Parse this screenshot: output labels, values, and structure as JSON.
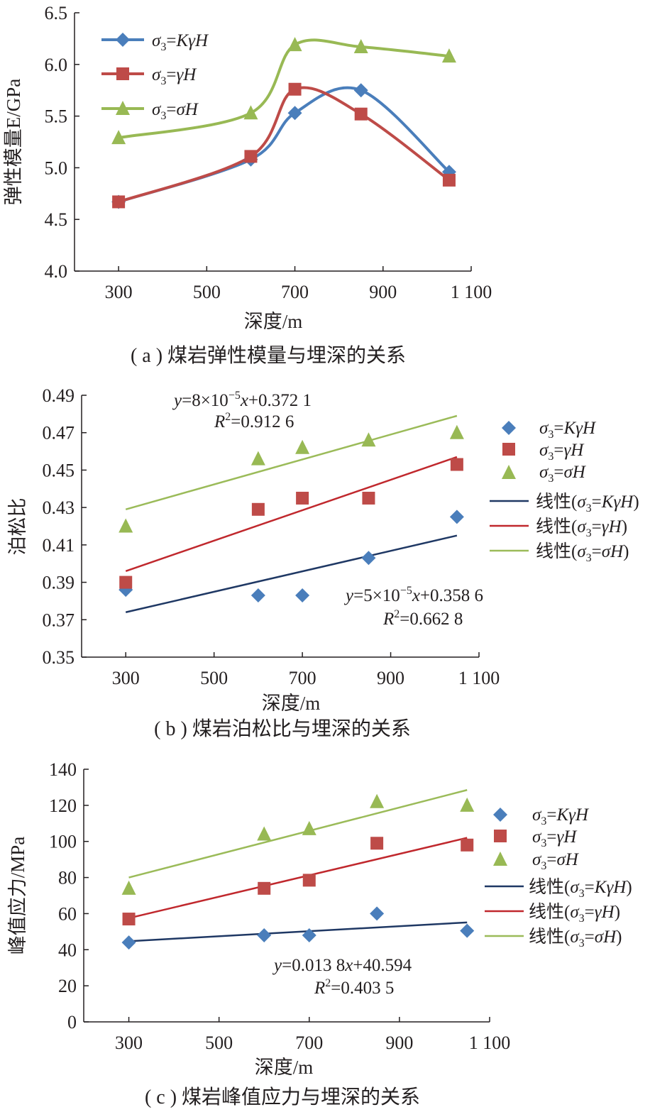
{
  "chart_data": [
    {
      "id": "a",
      "type": "line",
      "caption": "( a ) 煤岩弹性模量与埋深的关系",
      "xlabel": "深度/m",
      "ylabel": "弹性模量E/GPa",
      "xlim": [
        200,
        1100
      ],
      "ylim": [
        4.0,
        6.5
      ],
      "xticks": [
        300,
        500,
        700,
        900,
        1100
      ],
      "xtick_labels": [
        "300",
        "500",
        "700",
        "900",
        "1 100"
      ],
      "yticks": [
        4.0,
        4.5,
        5.0,
        5.5,
        6.0,
        6.5
      ],
      "ytick_labels": [
        "4.0",
        "4.5",
        "5.0",
        "5.5",
        "6.0",
        "6.5"
      ],
      "legend_position": "top-left",
      "smooth": true,
      "series": [
        {
          "name": "σ3=KγH",
          "marker": "diamond",
          "color": "#4a7ebb",
          "x": [
            300,
            600,
            700,
            850,
            1050
          ],
          "y": [
            4.67,
            5.08,
            5.53,
            5.75,
            4.96
          ]
        },
        {
          "name": "σ3=γH",
          "marker": "square",
          "color": "#be4b48",
          "x": [
            300,
            600,
            700,
            850,
            1050
          ],
          "y": [
            4.67,
            5.11,
            5.76,
            5.52,
            4.88
          ]
        },
        {
          "name": "σ3=σH",
          "marker": "triangle",
          "color": "#98b954",
          "x": [
            300,
            600,
            700,
            850,
            1050
          ],
          "y": [
            5.29,
            5.53,
            6.19,
            6.17,
            6.08
          ]
        }
      ]
    },
    {
      "id": "b",
      "type": "scatter",
      "caption": "( b ) 煤岩泊松比与埋深的关系",
      "xlabel": "深度/m",
      "ylabel": "泊松比",
      "xlim": [
        200,
        1100
      ],
      "ylim": [
        0.35,
        0.49
      ],
      "xticks": [
        300,
        500,
        700,
        900,
        1100
      ],
      "xtick_labels": [
        "300",
        "500",
        "700",
        "900",
        "1 100"
      ],
      "yticks": [
        0.35,
        0.37,
        0.39,
        0.41,
        0.43,
        0.45,
        0.47,
        0.49
      ],
      "ytick_labels": [
        "0.35",
        "0.37",
        "0.39",
        "0.41",
        "0.43",
        "0.45",
        "0.47",
        "0.49"
      ],
      "legend_position": "right",
      "series": [
        {
          "name": "σ3=KγH",
          "marker": "diamond",
          "color": "#4a7ebb",
          "x": [
            300,
            600,
            700,
            850,
            1050
          ],
          "y": [
            0.386,
            0.383,
            0.383,
            0.403,
            0.425
          ]
        },
        {
          "name": "σ3=γH",
          "marker": "square",
          "color": "#be4b48",
          "x": [
            300,
            600,
            700,
            850,
            1050
          ],
          "y": [
            0.39,
            0.429,
            0.435,
            0.435,
            0.453
          ]
        },
        {
          "name": "σ3=σH",
          "marker": "triangle",
          "color": "#98b954",
          "x": [
            300,
            600,
            700,
            850,
            1050
          ],
          "y": [
            0.42,
            0.456,
            0.462,
            0.466,
            0.47
          ]
        }
      ],
      "trendlines": [
        {
          "name": "线性(σ3=KγH)",
          "color": "#1f3864",
          "x": [
            300,
            1050
          ],
          "y": [
            0.374,
            0.415
          ]
        },
        {
          "name": "线性(σ3=γH)",
          "color": "#c0282d",
          "x": [
            300,
            1050
          ],
          "y": [
            0.396,
            0.457
          ]
        },
        {
          "name": "线性(σ3=σH)",
          "color": "#9bbb59",
          "x": [
            300,
            1050
          ],
          "y": [
            0.429,
            0.479
          ]
        }
      ],
      "annotations": [
        {
          "equation": "y=8×10−5x+0.372 1",
          "r2": "R2=0.912 6"
        },
        {
          "equation": "y=5×10−5x+0.358 6",
          "r2": "R2=0.662 8"
        }
      ]
    },
    {
      "id": "c",
      "type": "scatter",
      "caption": "( c ) 煤岩峰值应力与埋深的关系",
      "xlabel": "深度/m",
      "ylabel": "峰值应力/MPa",
      "xlim": [
        200,
        1100
      ],
      "ylim": [
        0,
        140
      ],
      "xticks": [
        300,
        500,
        700,
        900,
        1100
      ],
      "xtick_labels": [
        "300",
        "500",
        "700",
        "900",
        "1 100"
      ],
      "yticks": [
        0,
        20,
        40,
        60,
        80,
        100,
        120,
        140
      ],
      "ytick_labels": [
        "0",
        "20",
        "40",
        "60",
        "80",
        "100",
        "120",
        "140"
      ],
      "legend_position": "right",
      "series": [
        {
          "name": "σ3=KγH",
          "marker": "diamond",
          "color": "#4a7ebb",
          "x": [
            300,
            600,
            700,
            850,
            1050
          ],
          "y": [
            44,
            48,
            48,
            60,
            50.5
          ]
        },
        {
          "name": "σ3=γH",
          "marker": "square",
          "color": "#be4b48",
          "x": [
            300,
            600,
            700,
            850,
            1050
          ],
          "y": [
            57,
            74,
            78.5,
            99,
            98
          ]
        },
        {
          "name": "σ3=σH",
          "marker": "triangle",
          "color": "#98b954",
          "x": [
            300,
            600,
            700,
            850,
            1050
          ],
          "y": [
            74,
            104,
            107,
            122,
            120
          ]
        }
      ],
      "trendlines": [
        {
          "name": "线性(σ3=KγH)",
          "color": "#1f3864",
          "x": [
            300,
            1050
          ],
          "y": [
            44.7,
            55.1
          ]
        },
        {
          "name": "线性(σ3=γH)",
          "color": "#c0282d",
          "x": [
            300,
            1050
          ],
          "y": [
            57.5,
            102
          ]
        },
        {
          "name": "线性(σ3=σH)",
          "color": "#9bbb59",
          "x": [
            300,
            1050
          ],
          "y": [
            80,
            128.5
          ]
        }
      ],
      "annotations": [
        {
          "equation": "y=0.013 8x+40.594",
          "r2": "R2=0.403 5"
        }
      ]
    }
  ]
}
